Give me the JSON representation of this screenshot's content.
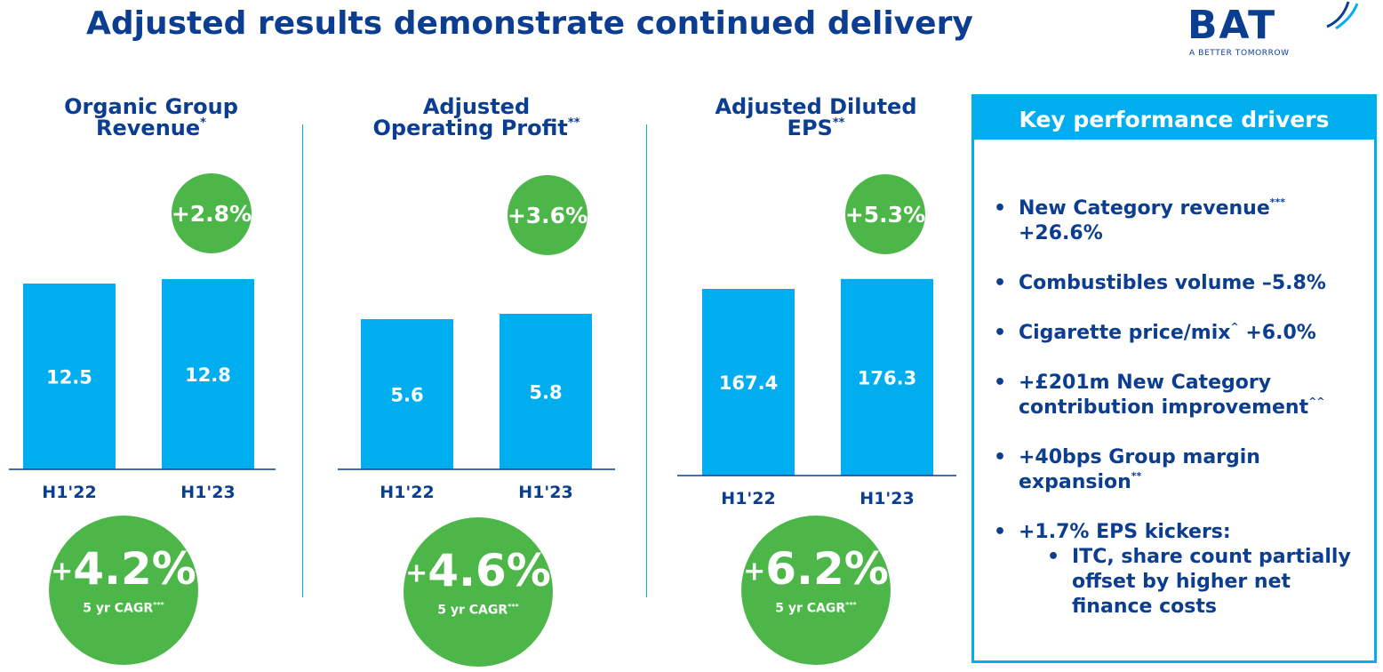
{
  "page": {
    "title": "Adjusted results demonstrate continued delivery",
    "logo": {
      "text": "BAT",
      "tagline": "A BETTER TOMORROW"
    }
  },
  "colors": {
    "navy": "#0b3d91",
    "bar": "#00aeef",
    "green": "#4cb748",
    "white": "#ffffff"
  },
  "chart_data": [
    {
      "type": "bar",
      "title": "Organic Group Revenue",
      "title_lines": [
        "Organic Group",
        "Revenue"
      ],
      "title_footnote": "*",
      "categories": [
        "H1'22",
        "H1'23"
      ],
      "values": [
        12.5,
        12.8
      ],
      "value_labels": [
        "12.5",
        "12.8"
      ],
      "growth": "+2.8%",
      "cagr": {
        "plus": "+",
        "value": "4.2%",
        "label": "5 yr CAGR",
        "footnote": "***"
      }
    },
    {
      "type": "bar",
      "title": "Adjusted Operating Profit",
      "title_lines": [
        "Adjusted",
        "Operating Profit"
      ],
      "title_footnote": "**",
      "categories": [
        "H1'22",
        "H1'23"
      ],
      "values": [
        5.6,
        5.8
      ],
      "value_labels": [
        "5.6",
        "5.8"
      ],
      "growth": "+3.6%",
      "cagr": {
        "plus": "+",
        "value": "4.6%",
        "label": "5 yr CAGR",
        "footnote": "***"
      }
    },
    {
      "type": "bar",
      "title": "Adjusted Diluted EPS",
      "title_lines": [
        "Adjusted Diluted",
        "EPS"
      ],
      "title_footnote": "**",
      "categories": [
        "H1'22",
        "H1'23"
      ],
      "values": [
        167.4,
        176.3
      ],
      "value_labels": [
        "167.4",
        "176.3"
      ],
      "growth": "+5.3%",
      "cagr": {
        "plus": "+",
        "value": "6.2%",
        "label": "5 yr CAGR",
        "footnote": "***"
      }
    }
  ],
  "drivers": {
    "header": "Key performance drivers",
    "items": [
      {
        "text": "New Category revenue",
        "sup": "***",
        "text2": "+26.6%"
      },
      {
        "text": "Combustibles volume –5.8%",
        "sup": "",
        "text2": ""
      },
      {
        "text": "Cigarette price/mix",
        "sup": "^",
        "text2": " +6.0%"
      },
      {
        "text": "+£201m New Category contribution improvement",
        "sup": "^^",
        "text2": ""
      },
      {
        "text": "+40bps Group margin expansion",
        "sup": "**",
        "text2": ""
      },
      {
        "text": "+1.7% EPS kickers:",
        "sup": "",
        "text2": ""
      }
    ],
    "sub_item": "ITC, share count partially offset by higher net finance costs"
  }
}
